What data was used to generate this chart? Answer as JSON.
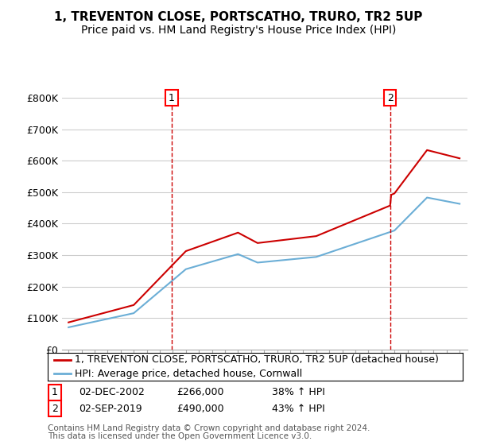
{
  "title": "1, TREVENTON CLOSE, PORTSCATHO, TRURO, TR2 5UP",
  "subtitle": "Price paid vs. HM Land Registry's House Price Index (HPI)",
  "ylim": [
    0,
    800000
  ],
  "yticks": [
    0,
    100000,
    200000,
    300000,
    400000,
    500000,
    600000,
    700000,
    800000
  ],
  "ytick_labels": [
    "£0",
    "£100K",
    "£200K",
    "£300K",
    "£400K",
    "£500K",
    "£600K",
    "£700K",
    "£800K"
  ],
  "sale1_year": 2002.92,
  "sale1_price": 266000,
  "sale1_label": "1",
  "sale1_date": "02-DEC-2002",
  "sale1_hpi": "38% ↑ HPI",
  "sale2_year": 2019.67,
  "sale2_price": 490000,
  "sale2_label": "2",
  "sale2_date": "02-SEP-2019",
  "sale2_hpi": "43% ↑ HPI",
  "hpi_color": "#6baed6",
  "price_color": "#cc0000",
  "vline_color": "#cc0000",
  "legend1_label": "1, TREVENTON CLOSE, PORTSCATHO, TRURO, TR2 5UP (detached house)",
  "legend2_label": "HPI: Average price, detached house, Cornwall",
  "footer1": "Contains HM Land Registry data © Crown copyright and database right 2024.",
  "footer2": "This data is licensed under the Open Government Licence v3.0.",
  "bg_color": "#ffffff",
  "grid_color": "#cccccc",
  "title_fontsize": 11,
  "subtitle_fontsize": 10,
  "tick_fontsize": 9,
  "legend_fontsize": 9,
  "annotation_fontsize": 9
}
